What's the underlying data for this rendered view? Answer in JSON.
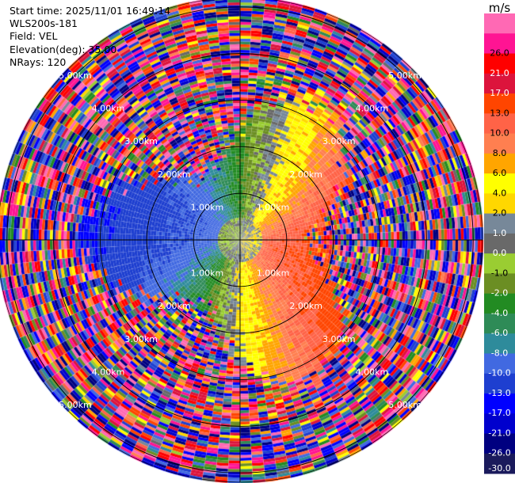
{
  "info": {
    "start_time": "Start time: 2025/11/01 16:49:14",
    "instrument": "WLS200s-181",
    "field": "Field: VEL",
    "elevation": "Elevation(deg): 35.00",
    "nrays": "NRays: 120"
  },
  "chart_data": {
    "type": "heatmap",
    "projection": "polar (PPI)",
    "field": "VEL",
    "units": "m/s",
    "n_rays": 120,
    "elevation_deg": 35.0,
    "range_rings_km": [
      1.0,
      2.0,
      3.0,
      4.0,
      5.0
    ],
    "range_ring_labels": [
      "1.00km",
      "2.00km",
      "3.00km",
      "4.00km",
      "5.00km"
    ],
    "max_range_km": 5.2,
    "colorbar": {
      "unit_label": "m/s",
      "levels": [
        -30.0,
        -26.0,
        -21.0,
        -17.0,
        -13.0,
        -10.0,
        -8.0,
        -6.0,
        -4.0,
        -2.0,
        -1.0,
        0.0,
        1.0,
        2.0,
        4.0,
        6.0,
        8.0,
        10.0,
        13.0,
        17.0,
        21.0,
        26.0
      ],
      "tick_labels": [
        "-30.0",
        "-26.0",
        "-21.0",
        "-17.0",
        "-13.0",
        "-10.0",
        "-8.0",
        "-6.0",
        "-4.0",
        "-2.0",
        "-1.0",
        "0.0",
        "1.0",
        "2.0",
        "4.0",
        "6.0",
        "8.0",
        "10.0",
        "13.0",
        "17.0",
        "21.0",
        "26.0"
      ],
      "colors": [
        "#1a1a5c",
        "#000080",
        "#0000cd",
        "#0000ff",
        "#1e3fd0",
        "#4169e1",
        "#2e8b9b",
        "#2e8b57",
        "#228b22",
        "#6b8e23",
        "#9acd32",
        "#696969",
        "#778899",
        "#ffd700",
        "#ffff00",
        "#ffa500",
        "#ff7f50",
        "#ff6347",
        "#ff4500",
        "#dc143c",
        "#ff0000",
        "#ff1493",
        "#ff69b4"
      ]
    },
    "valid_range_km": 2.5,
    "notes_on_pattern": ""
  }
}
